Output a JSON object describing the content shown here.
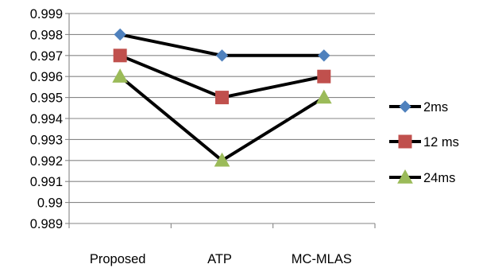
{
  "chart_data": {
    "type": "line",
    "categories": [
      "Proposed",
      "ATP",
      "MC-MLAS"
    ],
    "series": [
      {
        "name": "2ms",
        "values": [
          0.998,
          0.997,
          0.997
        ],
        "marker": "diamond",
        "marker_color": "#4F81BD"
      },
      {
        "name": "12 ms",
        "values": [
          0.997,
          0.995,
          0.996
        ],
        "marker": "square",
        "marker_color": "#C0504D"
      },
      {
        "name": "24ms",
        "values": [
          0.996,
          0.992,
          0.995
        ],
        "marker": "triangle",
        "marker_color": "#9BBB59"
      }
    ],
    "yticks": [
      "0.989",
      "0.99",
      "0.991",
      "0.992",
      "0.993",
      "0.994",
      "0.995",
      "0.996",
      "0.997",
      "0.998",
      "0.999"
    ],
    "ylim": [
      0.989,
      0.999
    ],
    "line_color": "#000000",
    "grid": true,
    "legend_position": "right",
    "title": "",
    "xlabel": "",
    "ylabel": ""
  }
}
